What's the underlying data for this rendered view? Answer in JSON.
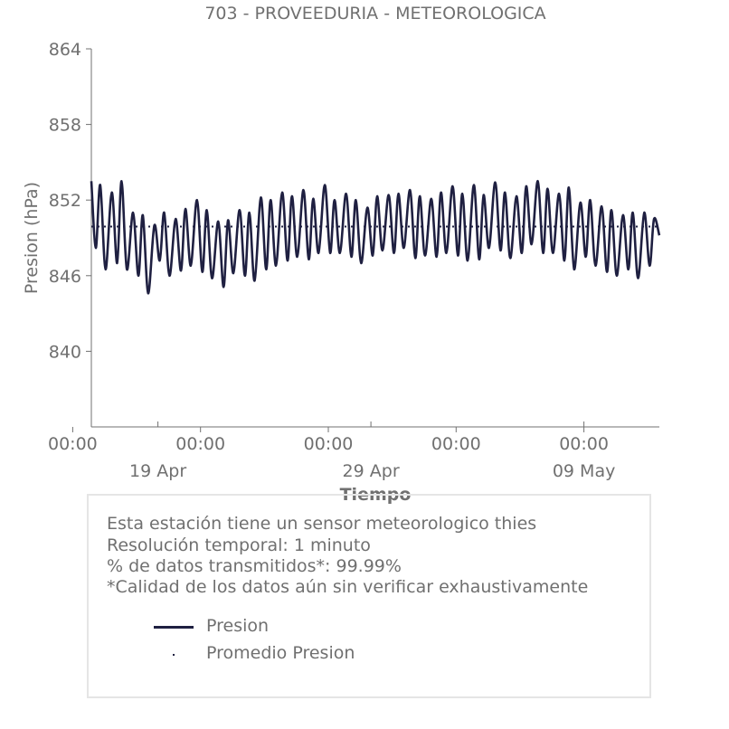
{
  "chart_data": {
    "type": "line",
    "title": "703 - PROVEEDURIA - METEOROLOGICA",
    "xlabel": "Tiempo",
    "ylabel": "Presion (hPa)",
    "ylim": [
      834,
      864
    ],
    "yticks": [
      840,
      846,
      852,
      858,
      864
    ],
    "xlim": [
      "2024-04-15T21:00",
      "2024-05-12T13:00"
    ],
    "xticks_time": [
      {
        "date": "2024-04-15T00:00",
        "label": "00:00"
      },
      {
        "date": "2024-04-21T00:00",
        "label": "00:00"
      },
      {
        "date": "2024-04-27T00:00",
        "label": "00:00"
      },
      {
        "date": "2024-05-03T00:00",
        "label": "00:00"
      },
      {
        "date": "2024-05-09T00:00",
        "label": "00:00"
      }
    ],
    "xticks_date": [
      {
        "date": "2024-04-19",
        "label": "19 Apr"
      },
      {
        "date": "2024-04-29",
        "label": "29 Apr"
      },
      {
        "date": "2024-05-09",
        "label": "09 May"
      }
    ],
    "grid": false,
    "series": [
      {
        "name": "Presion",
        "color": "#1f2041",
        "x": [
          "2024-04-15T21:00",
          "2024-04-16T02:00",
          "2024-04-16T07:00",
          "2024-04-16T13:00",
          "2024-04-16T20:00",
          "2024-04-17T02:00",
          "2024-04-17T07:00",
          "2024-04-17T13:00",
          "2024-04-17T20:00",
          "2024-04-18T02:00",
          "2024-04-18T07:00",
          "2024-04-18T13:00",
          "2024-04-18T20:00",
          "2024-04-19T02:00",
          "2024-04-19T07:00",
          "2024-04-19T13:00",
          "2024-04-19T20:00",
          "2024-04-20T02:00",
          "2024-04-20T07:00",
          "2024-04-20T13:00",
          "2024-04-20T20:00",
          "2024-04-21T02:00",
          "2024-04-21T07:00",
          "2024-04-21T13:00",
          "2024-04-21T20:00",
          "2024-04-22T02:00",
          "2024-04-22T07:00",
          "2024-04-22T13:00",
          "2024-04-22T20:00",
          "2024-04-23T02:00",
          "2024-04-23T07:00",
          "2024-04-23T13:00",
          "2024-04-23T20:00",
          "2024-04-24T02:00",
          "2024-04-24T07:00",
          "2024-04-24T13:00",
          "2024-04-24T20:00",
          "2024-04-25T02:00",
          "2024-04-25T07:00",
          "2024-04-25T13:00",
          "2024-04-25T20:00",
          "2024-04-26T02:00",
          "2024-04-26T07:00",
          "2024-04-26T13:00",
          "2024-04-26T20:00",
          "2024-04-27T02:00",
          "2024-04-27T07:00",
          "2024-04-27T13:00",
          "2024-04-27T20:00",
          "2024-04-28T02:00",
          "2024-04-28T07:00",
          "2024-04-28T13:00",
          "2024-04-28T20:00",
          "2024-04-29T02:00",
          "2024-04-29T07:00",
          "2024-04-29T13:00",
          "2024-04-29T20:00",
          "2024-04-30T02:00",
          "2024-04-30T07:00",
          "2024-04-30T13:00",
          "2024-04-30T20:00",
          "2024-05-01T02:00",
          "2024-05-01T07:00",
          "2024-05-01T13:00",
          "2024-05-01T20:00",
          "2024-05-02T02:00",
          "2024-05-02T07:00",
          "2024-05-02T13:00",
          "2024-05-02T20:00",
          "2024-05-03T02:00",
          "2024-05-03T07:00",
          "2024-05-03T13:00",
          "2024-05-03T20:00",
          "2024-05-04T02:00",
          "2024-05-04T07:00",
          "2024-05-04T13:00",
          "2024-05-04T20:00",
          "2024-05-05T02:00",
          "2024-05-05T07:00",
          "2024-05-05T13:00",
          "2024-05-05T20:00",
          "2024-05-06T02:00",
          "2024-05-06T07:00",
          "2024-05-06T13:00",
          "2024-05-06T20:00",
          "2024-05-07T02:00",
          "2024-05-07T07:00",
          "2024-05-07T13:00",
          "2024-05-07T20:00",
          "2024-05-08T02:00",
          "2024-05-08T07:00",
          "2024-05-08T13:00",
          "2024-05-08T20:00",
          "2024-05-09T02:00",
          "2024-05-09T07:00",
          "2024-05-09T13:00",
          "2024-05-09T20:00",
          "2024-05-10T02:00",
          "2024-05-10T07:00",
          "2024-05-10T13:00",
          "2024-05-10T20:00",
          "2024-05-11T02:00",
          "2024-05-11T07:00",
          "2024-05-11T13:00",
          "2024-05-11T20:00",
          "2024-05-12T02:00",
          "2024-05-12T07:00",
          "2024-05-12T13:00"
        ],
        "y": [
          853.5,
          848.2,
          853.2,
          846.5,
          852.6,
          847.0,
          853.5,
          846.5,
          851.0,
          846.0,
          850.8,
          844.6,
          850.0,
          847.2,
          851.0,
          846.0,
          850.5,
          846.4,
          851.3,
          846.8,
          852.0,
          846.3,
          851.2,
          845.8,
          850.3,
          845.1,
          850.4,
          846.2,
          851.2,
          846.0,
          851.0,
          845.6,
          852.2,
          846.5,
          852.0,
          846.8,
          852.6,
          847.2,
          852.3,
          847.5,
          852.8,
          847.3,
          852.1,
          847.8,
          853.2,
          847.8,
          852.0,
          847.8,
          852.5,
          847.5,
          852.0,
          847.0,
          851.4,
          847.6,
          852.3,
          848.0,
          852.4,
          847.8,
          852.5,
          848.2,
          852.8,
          847.4,
          852.3,
          847.6,
          852.1,
          847.5,
          852.6,
          847.8,
          853.1,
          847.6,
          852.5,
          847.2,
          853.2,
          847.3,
          852.4,
          848.2,
          853.4,
          848.0,
          852.6,
          847.4,
          852.3,
          847.8,
          853.1,
          848.5,
          853.5,
          847.8,
          852.9,
          847.8,
          852.5,
          847.2,
          853.0,
          846.5,
          851.8,
          847.5,
          852.0,
          846.8,
          851.5,
          846.3,
          851.2,
          846.0,
          850.8,
          846.5,
          851.0,
          845.8,
          851.0,
          846.8,
          850.5,
          849.2
        ]
      },
      {
        "name": "Promedio Presion",
        "color": "#1f2041",
        "value": 849.9
      }
    ],
    "legend": "bottom",
    "legend_entries": [
      "Presion",
      "Promedio Presion"
    ]
  },
  "info": {
    "line1": "Esta estación tiene un sensor meteorologico thies",
    "line2": "Resolución temporal: 1 minuto",
    "line3": "% de datos transmitidos*: 99.99%",
    "line4": "*Calidad de los datos aún sin verificar exhaustivamente"
  }
}
